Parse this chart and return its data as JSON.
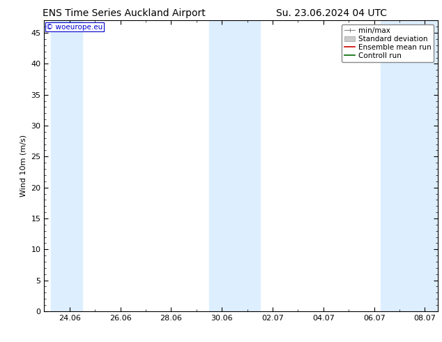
{
  "title_left": "ENS Time Series Auckland Airport",
  "title_right": "Su. 23.06.2024 04 UTC",
  "ylabel": "Wind 10m (m/s)",
  "watermark": "© woeurope.eu",
  "ylim": [
    0,
    47
  ],
  "yticks": [
    0,
    5,
    10,
    15,
    20,
    25,
    30,
    35,
    40,
    45
  ],
  "xtick_labels": [
    "24.06",
    "26.06",
    "28.06",
    "30.06",
    "02.07",
    "04.07",
    "06.07",
    "08.07"
  ],
  "shaded_color": "#ddeeff",
  "legend_labels": [
    "min/max",
    "Standard deviation",
    "Ensemble mean run",
    "Controll run"
  ],
  "legend_colors_line": [
    "#aaaaaa",
    "#cccccc",
    "#ff0000",
    "#006600"
  ],
  "background_color": "#ffffff",
  "title_fontsize": 10,
  "axis_fontsize": 8,
  "tick_fontsize": 8,
  "legend_fontsize": 7.5
}
